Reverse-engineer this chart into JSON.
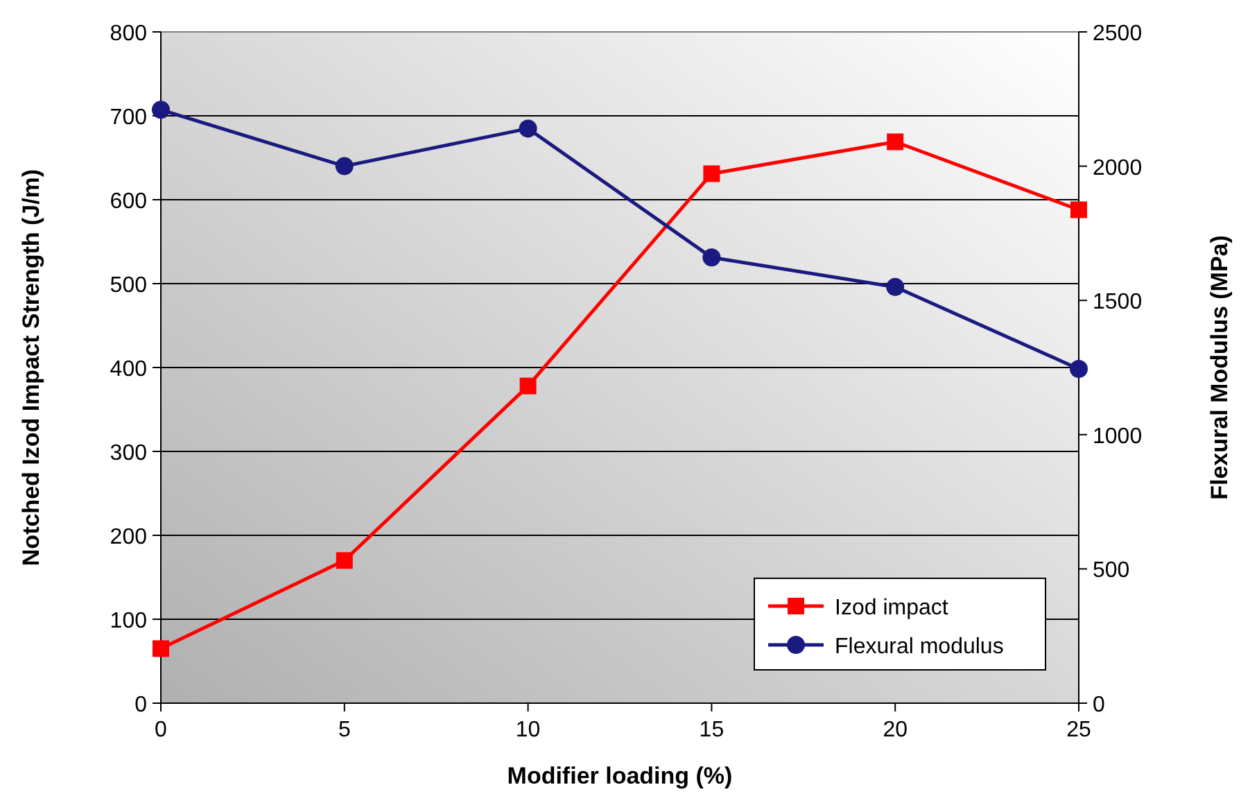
{
  "chart_data": {
    "type": "line",
    "xlabel": "Modifier loading (%)",
    "ylabel": "Notched Izod Impact Strength (J/m)",
    "y2label": "Flexural Modulus (MPa)",
    "x": [
      0,
      5,
      10,
      15,
      20,
      25
    ],
    "xlim": [
      0,
      25
    ],
    "xticks": [
      0,
      5,
      10,
      15,
      20,
      25
    ],
    "ylim": [
      0,
      800
    ],
    "yticks": [
      0,
      100,
      200,
      300,
      400,
      500,
      600,
      700,
      800
    ],
    "y2lim": [
      0,
      2500
    ],
    "y2ticks": [
      0,
      500,
      1000,
      1500,
      2000,
      2500
    ],
    "grid": "y",
    "legend": "bottom right",
    "line_style": "solid",
    "series": [
      {
        "name": "Izod impact",
        "color": "#ff0000",
        "marker": "square",
        "values": [
          65,
          170,
          378,
          631,
          669,
          588
        ]
      },
      {
        "name": "Flexural modulus",
        "color": "#1a1a80",
        "marker": "circle",
        "axis": "y2",
        "values": [
          2210,
          2000,
          2140,
          1660,
          1550,
          1245
        ]
      }
    ]
  }
}
